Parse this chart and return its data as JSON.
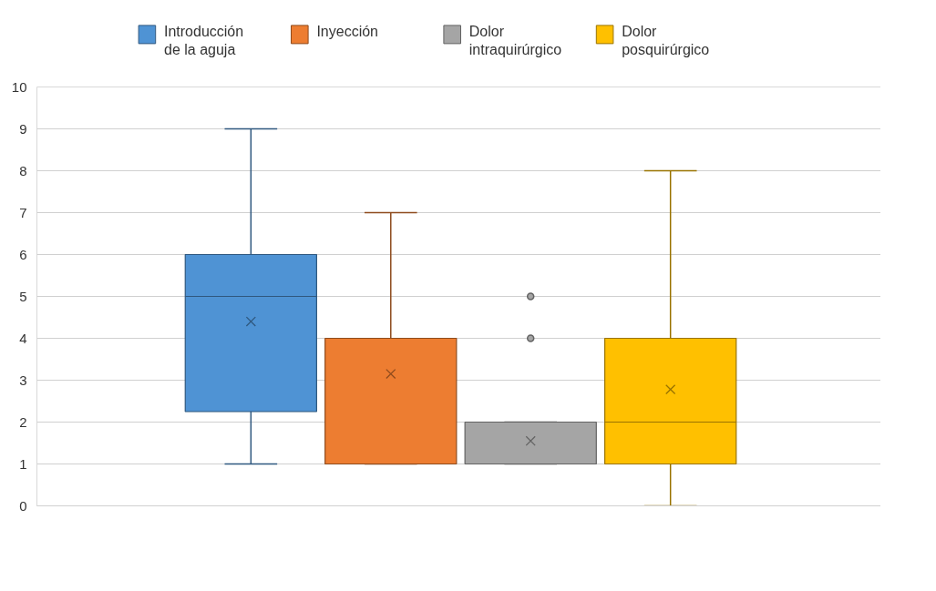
{
  "chart_data": {
    "type": "box",
    "categories": [
      null
    ],
    "ylim": [
      0,
      10
    ],
    "yticks": [
      0,
      1,
      2,
      3,
      4,
      5,
      6,
      7,
      8,
      9,
      10
    ],
    "grid": "y",
    "legend": "top",
    "series": [
      {
        "name": "Introducción de la aguja",
        "color": "#4f93d4",
        "boxes": [
          {
            "low": 1,
            "q1": 2.25,
            "median": 5,
            "q3": 6,
            "high": 9,
            "mean": 4.4
          }
        ]
      },
      {
        "name": "Inyección",
        "color": "#ed7d31",
        "boxes": [
          {
            "low": 1,
            "q1": 1,
            "median": 1,
            "q3": 4,
            "high": 7,
            "mean": 3.15
          }
        ]
      },
      {
        "name": "Dolor intraquirúrgico",
        "color": "#a5a5a5",
        "boxes": [
          {
            "low": 1,
            "q1": 1,
            "median": 1,
            "q3": 2,
            "high": 2,
            "mean": 1.55,
            "outliers": [
              4,
              5
            ]
          }
        ]
      },
      {
        "name": "Dolor posquirúrgico",
        "color": "#ffc000",
        "boxes": [
          {
            "low": 0,
            "q1": 1,
            "median": 2,
            "q3": 4,
            "high": 8,
            "mean": 2.78
          }
        ]
      }
    ]
  }
}
